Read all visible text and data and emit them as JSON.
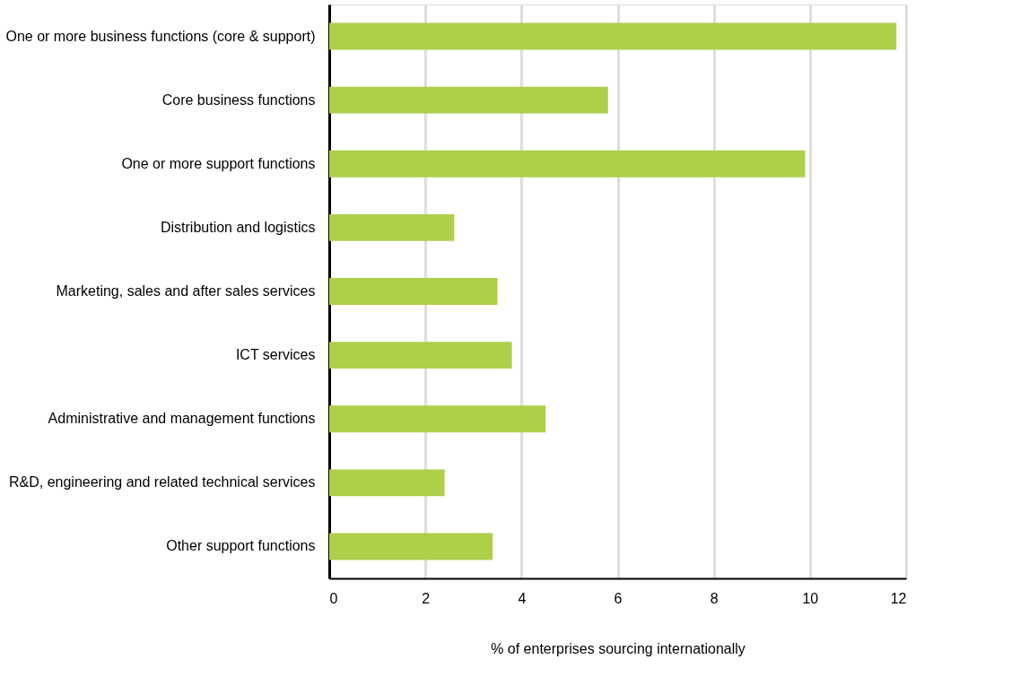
{
  "chart_data": {
    "type": "bar",
    "orientation": "horizontal",
    "xlabel": "% of enterprises sourcing internationally",
    "categories": [
      "One or more business functions (core & support)",
      "Core business functions",
      "One or more support functions",
      "Distribution and logistics",
      "Marketing, sales and after sales services",
      "ICT services",
      "Administrative and management functions",
      "R&D, engineering and related technical services",
      "Other support functions"
    ],
    "values": [
      11.8,
      5.8,
      9.9,
      2.6,
      3.5,
      3.8,
      4.5,
      2.4,
      3.4
    ],
    "color": "#adcf4a",
    "xlim": [
      0,
      12
    ],
    "xticks": [
      0,
      2,
      4,
      6,
      8,
      10,
      12
    ],
    "grid": "x"
  }
}
